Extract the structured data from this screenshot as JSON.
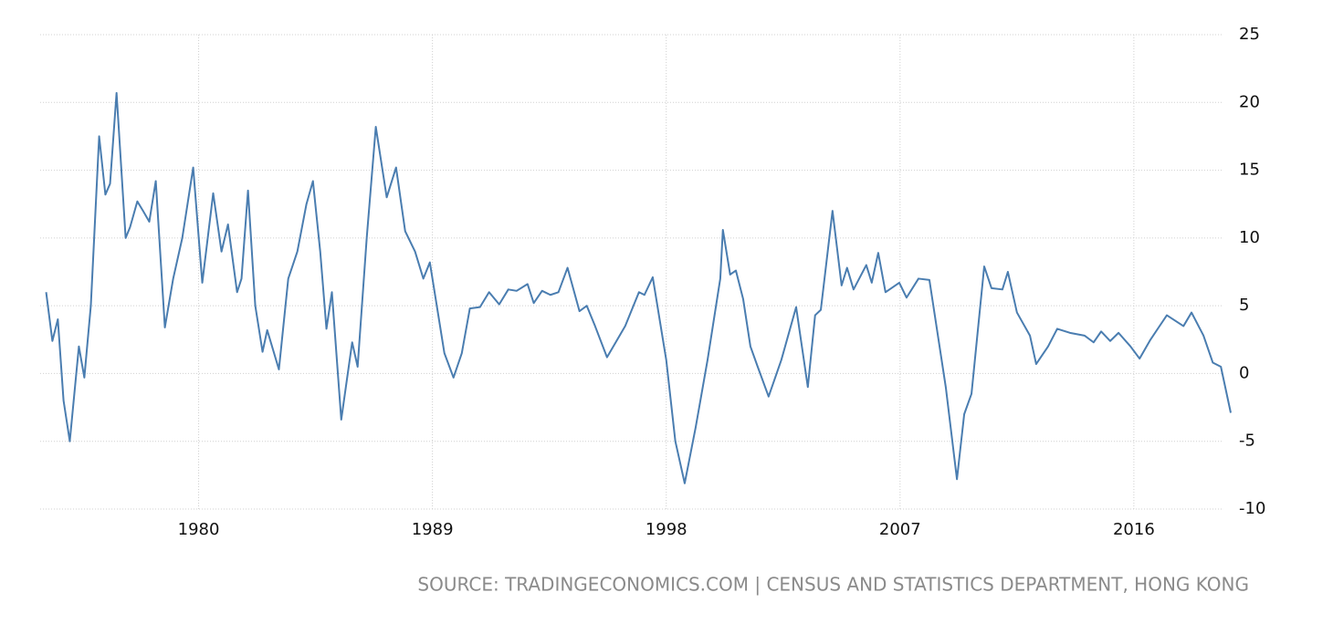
{
  "chart_data": {
    "type": "line",
    "source": "SOURCE: TRADINGECONOMICS.COM | CENSUS AND STATISTICS DEPARTMENT, HONG KONG",
    "xlim": [
      1973.9,
      2019.8
    ],
    "xticks": [
      1980,
      1989,
      1998,
      2007,
      2016
    ],
    "ylim": [
      -10,
      25
    ],
    "yticks": [
      -10,
      -5,
      0,
      5,
      10,
      15,
      20,
      25
    ],
    "grid": true,
    "series": [
      {
        "color": "#4a7db0",
        "x": [
          1974.13,
          1974.37,
          1974.58,
          1974.8,
          1975.04,
          1975.39,
          1975.6,
          1975.85,
          1976.17,
          1976.41,
          1976.59,
          1976.84,
          1977.19,
          1977.36,
          1977.64,
          1977.86,
          1978.1,
          1978.35,
          1978.7,
          1979.02,
          1979.37,
          1979.79,
          1980.14,
          1980.56,
          1980.88,
          1981.13,
          1981.48,
          1981.65,
          1981.9,
          1982.18,
          1982.46,
          1982.64,
          1983.09,
          1983.45,
          1983.8,
          1984.15,
          1984.4,
          1984.68,
          1984.92,
          1985.13,
          1985.49,
          1985.91,
          1986.12,
          1986.47,
          1986.82,
          1987.24,
          1987.6,
          1987.95,
          1988.33,
          1988.65,
          1988.9,
          1989.46,
          1989.81,
          1990.13,
          1990.44,
          1990.83,
          1991.18,
          1991.57,
          1991.92,
          1992.24,
          1992.66,
          1992.9,
          1993.22,
          1993.54,
          1993.85,
          1994.2,
          1994.66,
          1994.94,
          1995.26,
          1995.72,
          1996.42,
          1996.95,
          1997.16,
          1997.48,
          1998.0,
          1998.35,
          1998.71,
          1999.13,
          1999.59,
          2000.08,
          2000.18,
          2000.46,
          2000.68,
          2000.96,
          2001.24,
          2001.52,
          2001.94,
          2002.43,
          2003.0,
          2003.45,
          2003.73,
          2003.95,
          2004.4,
          2004.75,
          2004.96,
          2005.21,
          2005.7,
          2005.91,
          2006.16,
          2006.44,
          2006.97,
          2007.25,
          2007.71,
          2008.13,
          2008.76,
          2009.19,
          2009.47,
          2009.75,
          2010.24,
          2010.52,
          2010.94,
          2011.15,
          2011.5,
          2012.0,
          2012.24,
          2012.7,
          2013.05,
          2013.54,
          2014.1,
          2014.45,
          2014.74,
          2015.09,
          2015.41,
          2015.87,
          2016.22,
          2016.64,
          2017.27,
          2017.91,
          2018.22,
          2018.68,
          2019.04,
          2019.35,
          2019.73
        ],
        "values": [
          6,
          2.4,
          4,
          -2,
          -5,
          2,
          -0.3,
          5,
          17.5,
          13.2,
          14,
          20.7,
          10,
          10.8,
          12.7,
          12,
          11.2,
          14.2,
          3.4,
          7,
          10,
          15.2,
          6.7,
          13.3,
          9,
          11,
          6,
          7,
          13.5,
          5,
          1.6,
          3.2,
          0.3,
          7,
          9,
          12.5,
          14.2,
          9,
          3.3,
          6,
          -3.4,
          2.3,
          0.5,
          10,
          18.2,
          13,
          15.2,
          10.5,
          9,
          7,
          8.2,
          1.5,
          -0.3,
          1.5,
          4.8,
          4.9,
          6,
          5.1,
          6.2,
          6.1,
          6.6,
          5.2,
          6.1,
          5.8,
          6,
          7.8,
          4.6,
          5,
          3.5,
          1.2,
          3.5,
          6,
          5.8,
          7.1,
          1,
          -5,
          -8.1,
          -4,
          1,
          7,
          10.6,
          7.3,
          7.6,
          5.5,
          2,
          0.5,
          -1.7,
          1,
          4.9,
          -1,
          4.3,
          4.7,
          12,
          6.5,
          7.8,
          6.2,
          8,
          6.7,
          8.9,
          6,
          6.7,
          5.6,
          7,
          6.9,
          -1,
          -7.8,
          -3,
          -1.5,
          7.9,
          6.3,
          6.2,
          7.5,
          4.5,
          2.8,
          0.7,
          2,
          3.3,
          3,
          2.8,
          2.3,
          3.1,
          2.4,
          3,
          2,
          1.1,
          2.5,
          4.3,
          3.5,
          4.5,
          2.8,
          0.8,
          0.5,
          -2.9
        ]
      }
    ]
  }
}
